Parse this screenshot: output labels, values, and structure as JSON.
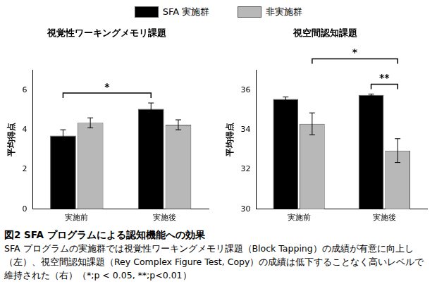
{
  "chart_data": [
    {
      "type": "bar",
      "title": "視覚性ワーキングメモリ課題",
      "y_label": "平均得点",
      "categories": [
        "実施前",
        "実施後"
      ],
      "series": [
        {
          "name": "SFA 実施群",
          "color": "#000000",
          "values": [
            3.7,
            5.05
          ],
          "errors": [
            0.3,
            0.3
          ]
        },
        {
          "name": "非実施群",
          "color": "#b8b8b8",
          "values": [
            4.35,
            4.25
          ],
          "errors": [
            0.25,
            0.25
          ]
        }
      ],
      "ylim": [
        0,
        7
      ],
      "yticks": [
        0,
        2,
        4,
        6
      ],
      "grid": false,
      "annotations": [
        {
          "text": "*",
          "from": {
            "category": 0,
            "series": 0
          },
          "to": {
            "category": 1,
            "series": 0
          }
        }
      ]
    },
    {
      "type": "bar",
      "title": "視空間認知課題",
      "y_label": "平均得点",
      "categories": [
        "実施前",
        "実施後"
      ],
      "series": [
        {
          "name": "SFA 実施群",
          "color": "#000000",
          "values": [
            35.55,
            35.75
          ],
          "errors": [
            0.1,
            0.05
          ]
        },
        {
          "name": "非実施群",
          "color": "#b8b8b8",
          "values": [
            34.3,
            32.95
          ],
          "errors": [
            0.55,
            0.6
          ]
        }
      ],
      "ylim": [
        30,
        37
      ],
      "yticks": [
        30,
        32,
        34,
        36
      ],
      "grid": false,
      "annotations": [
        {
          "text": "**",
          "from": {
            "category": 1,
            "series": 0
          },
          "to": {
            "category": 1,
            "series": 1
          }
        },
        {
          "text": "*",
          "from": {
            "category": 0,
            "series": 1
          },
          "to": {
            "category": 1,
            "series": 1
          }
        }
      ]
    }
  ],
  "caption": {
    "title": "図2 SFA プログラムによる認知機能への効果",
    "text": "SFA プログラムの実施群では視覚性ワーキングメモリ課題（Block Tapping）の成績が有意に向上し（左）、視空間認知課題（Rey Complex Figure Test, Copy）の成績は低下することなく高いレベルで維持された（右）（*;p < 0.05, **;p<0.01）"
  }
}
